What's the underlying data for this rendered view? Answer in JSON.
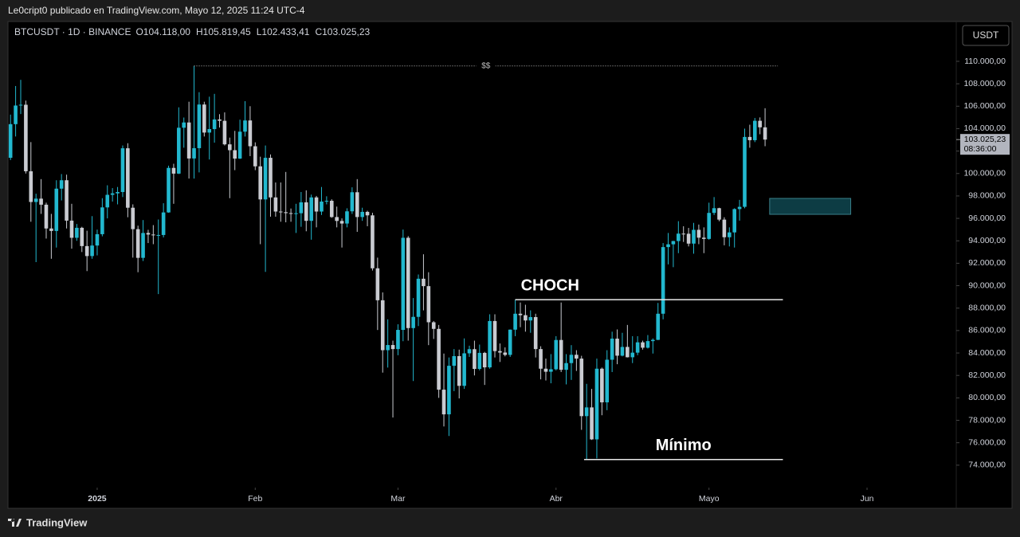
{
  "top_bar": "Le0cript0 publicado en TradingView.com, Mayo 12, 2025 11:24 UTC-4",
  "currency_button": "USDT",
  "footer_brand": "TradingView",
  "chart_data": {
    "type": "candlestick",
    "title": "BTCUSDT · 1D · BINANCE",
    "ohlc_labels": [
      "O104.118,00",
      "H105.819,45",
      "L102.433,41",
      "C103.025,23"
    ],
    "up_color": "#22b8cf",
    "down_color": "#c9cbd1",
    "series": [
      {
        "open": [
          101400,
          104400,
          106060,
          106130,
          100200,
          97460,
          97760,
          97220,
          95100,
          94880,
          98650,
          99400,
          95800,
          94270,
          95160,
          93530,
          92640,
          93580,
          94590,
          96980,
          98100,
          98230,
          98350,
          102250,
          96950,
          95040,
          92480,
          94700,
          94560,
          94500,
          94520,
          96530,
          100500,
          99990,
          104080,
          104550,
          101340,
          102260,
          106150,
          103650,
          103960,
          104820,
          104700,
          102600,
          102080,
          101330,
          103730,
          104730,
          102430,
          100640,
          97690,
          101400,
          97870,
          96610,
          96550,
          96470,
          96450,
          96460,
          97430,
          95780,
          97870,
          96610,
          97500,
          97570,
          96120,
          95770,
          95540,
          96630,
          98330,
          96120,
          96580,
          96270,
          91550,
          88700,
          84250,
          84710,
          84350,
          86060,
          94270,
          86220,
          87220,
          90620,
          89960,
          86740,
          86150,
          80730,
          78530,
          82860,
          83720,
          81070,
          83970,
          84340,
          82580,
          84010,
          82720,
          86850,
          84170,
          84040,
          83830,
          86080,
          87500,
          87370,
          86900,
          87200,
          84350,
          82600,
          82330,
          82550,
          85160,
          82500,
          83100,
          83840,
          83500,
          78370,
          79150,
          76300,
          82600,
          79600,
          83400,
          85280,
          83760,
          84540,
          83620,
          84030,
          84950,
          84470,
          85060,
          85170,
          87500,
          93440,
          93690,
          93980,
          94640,
          94630,
          93750,
          94980,
          94280,
          94170,
          96490,
          96910,
          95890,
          94320,
          94750,
          96830,
          97030,
          103260,
          102970,
          104700,
          104118
        ],
        "high": [
          105250,
          107800,
          108350,
          106500,
          102800,
          98200,
          99500,
          97400,
          96400,
          99400,
          99950,
          99900,
          97300,
          95500,
          95250,
          94900,
          96200,
          95000,
          97800,
          98950,
          98700,
          98800,
          102500,
          102700,
          97250,
          95350,
          95850,
          94980,
          95400,
          95900,
          97350,
          100700,
          100870,
          105900,
          104990,
          106400,
          109590,
          107250,
          106400,
          106850,
          107100,
          105290,
          105450,
          103200,
          103800,
          104800,
          106450,
          106000,
          102780,
          101500,
          102500,
          101700,
          99200,
          99200,
          100140,
          96880,
          97300,
          98350,
          98500,
          98120,
          98000,
          98800,
          97970,
          97700,
          97050,
          96000,
          96900,
          98770,
          99500,
          96950,
          96680,
          96500,
          92500,
          89400,
          87000,
          85100,
          86560,
          95000,
          94420,
          88900,
          91000,
          92800,
          91200,
          86850,
          86500,
          83950,
          83600,
          84350,
          84300,
          85300,
          84650,
          85100,
          84750,
          84100,
          87450,
          87450,
          84850,
          84500,
          86100,
          88750,
          88500,
          88300,
          87800,
          87500,
          84600,
          83500,
          83900,
          85500,
          88500,
          83900,
          84700,
          84250,
          83750,
          81250,
          80800,
          83500,
          82700,
          84250,
          85900,
          86100,
          85800,
          86500,
          85500,
          85500,
          85100,
          85600,
          85300,
          88460,
          93800,
          94700,
          94000,
          95750,
          95300,
          95150,
          95600,
          95450,
          95200,
          97400,
          97900,
          96950,
          96100,
          95200,
          96900,
          97650,
          104000,
          104350,
          104950,
          105000,
          105819.45
        ],
        "low": [
          101200,
          103300,
          105300,
          100000,
          95700,
          92100,
          96400,
          94200,
          92400,
          93400,
          97600,
          95100,
          93300,
          94000,
          93000,
          91300,
          92400,
          92700,
          94400,
          96000,
          97500,
          97250,
          97900,
          96100,
          92500,
          91200,
          92200,
          93800,
          93700,
          89250,
          94300,
          96500,
          97300,
          99950,
          102300,
          99550,
          99550,
          100100,
          103300,
          101250,
          102750,
          104100,
          102500,
          97800,
          100300,
          101300,
          103300,
          101550,
          100300,
          93700,
          91230,
          96150,
          96150,
          95700,
          95650,
          95700,
          94700,
          95250,
          94850,
          94100,
          95200,
          96300,
          97250,
          96050,
          95200,
          93400,
          95200,
          96400,
          94800,
          95780,
          95300,
          91350,
          86050,
          82250,
          82700,
          78250,
          83800,
          85050,
          85100,
          81500,
          86400,
          87800,
          84700,
          85250,
          80000,
          77450,
          76600,
          80600,
          79950,
          80800,
          83650,
          82000,
          82450,
          81150,
          82600,
          83600,
          83200,
          83700,
          83650,
          85500,
          86300,
          85900,
          85800,
          83600,
          81650,
          81550,
          81300,
          82450,
          82300,
          81200,
          81600,
          82400,
          77150,
          74500,
          76250,
          74600,
          78450,
          78900,
          82300,
          83000,
          83700,
          83600,
          83100,
          83800,
          84300,
          84400,
          83950,
          85150,
          87000,
          91900,
          91650,
          92900,
          93900,
          93500,
          92850,
          93700,
          92900,
          94100,
          96300,
          95750,
          93600,
          93500,
          93400,
          95800,
          96900,
          102300,
          102800,
          103500,
          102433.41
        ],
        "close": [
          104400,
          106060,
          106130,
          100200,
          97460,
          97760,
          97220,
          95100,
          94880,
          98650,
          99400,
          95800,
          94270,
          95160,
          93530,
          92640,
          93580,
          94590,
          96980,
          98100,
          98230,
          98350,
          102250,
          96950,
          95040,
          92480,
          94700,
          94560,
          94500,
          94520,
          96530,
          100500,
          99990,
          104080,
          104550,
          101340,
          102260,
          106150,
          103650,
          103960,
          104820,
          104700,
          102600,
          102080,
          101330,
          103730,
          104730,
          102430,
          100640,
          97690,
          101400,
          97870,
          96610,
          96550,
          96470,
          96450,
          96460,
          97430,
          95780,
          97870,
          96610,
          97500,
          97570,
          96120,
          95770,
          95540,
          96630,
          98330,
          96120,
          96580,
          96270,
          91550,
          88700,
          84250,
          84710,
          84350,
          86060,
          94270,
          86220,
          87220,
          90620,
          89960,
          86740,
          86150,
          80730,
          78530,
          82860,
          83720,
          81070,
          83970,
          84340,
          82580,
          84010,
          82720,
          86850,
          84170,
          84040,
          83830,
          86080,
          87500,
          87370,
          86900,
          87200,
          84350,
          82600,
          82330,
          82550,
          85160,
          82500,
          83100,
          83840,
          83500,
          78370,
          79150,
          76300,
          82600,
          79600,
          83400,
          85280,
          83760,
          84540,
          83620,
          84030,
          84950,
          84470,
          85060,
          85170,
          87500,
          93440,
          93690,
          93980,
          94640,
          94630,
          93750,
          94980,
          94280,
          94170,
          96490,
          96910,
          95890,
          94320,
          94750,
          96830,
          97030,
          103260,
          102970,
          104700,
          104118,
          103025.23
        ]
      }
    ],
    "xlim": [
      -0.5,
      185.5
    ],
    "xticks": [
      {
        "value": 17,
        "label": "2025"
      },
      {
        "value": 48,
        "label": "Feb"
      },
      {
        "value": 76,
        "label": "Mar"
      },
      {
        "value": 107,
        "label": "Abr"
      },
      {
        "value": 137,
        "label": "Mayo"
      },
      {
        "value": 168,
        "label": "Jun"
      }
    ],
    "ylim": [
      72000,
      113550
    ],
    "yticks": [
      {
        "value": 74000,
        "label": "74.000,00"
      },
      {
        "value": 76000,
        "label": "76.000,00"
      },
      {
        "value": 78000,
        "label": "78.000,00"
      },
      {
        "value": 80000,
        "label": "80.000,00"
      },
      {
        "value": 82000,
        "label": "82.000,00"
      },
      {
        "value": 84000,
        "label": "84.000,00"
      },
      {
        "value": 86000,
        "label": "86.000,00"
      },
      {
        "value": 88000,
        "label": "88.000,00"
      },
      {
        "value": 90000,
        "label": "90.000,00"
      },
      {
        "value": 92000,
        "label": "92.000,00"
      },
      {
        "value": 94000,
        "label": "94.000,00"
      },
      {
        "value": 96000,
        "label": "96.000,00"
      },
      {
        "value": 98000,
        "label": "98.000,00"
      },
      {
        "value": 100000,
        "label": "100.000,00"
      },
      {
        "value": 102000,
        "label": "102.000,00"
      },
      {
        "value": 104000,
        "label": "104.000,00"
      },
      {
        "value": 106000,
        "label": "106.000,00"
      },
      {
        "value": 108000,
        "label": "108.000,00"
      },
      {
        "value": 110000,
        "label": "110.000,00"
      }
    ],
    "last_price": {
      "value": 103025.23,
      "label": "103.025,23"
    },
    "countdown": "08:36:00",
    "annotations": [
      {
        "text": "CHOCH",
        "y": 88750,
        "x": [
          99,
          151.5
        ]
      },
      {
        "text": "Mínimo",
        "y": 74500,
        "x": [
          112.5,
          151.5
        ]
      },
      {
        "text": "$$",
        "y": 109590,
        "x": [
          36,
          150.5
        ]
      }
    ],
    "zone": {
      "ylim": [
        96360,
        97780
      ],
      "xlim": [
        148.9,
        164.8
      ],
      "color": "#0d3c44"
    }
  }
}
